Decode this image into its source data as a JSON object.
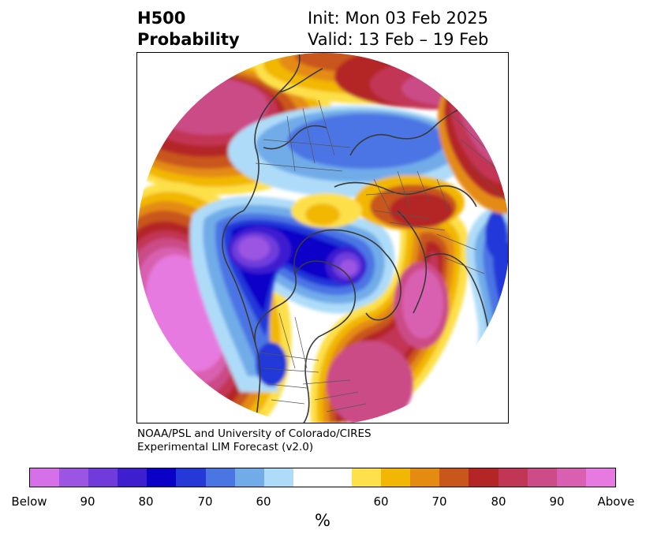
{
  "header": {
    "title_line1": "H500",
    "title_line2": "Probability",
    "init": "Init: Mon 03 Feb 2025",
    "valid": "Valid: 13 Feb – 19 Feb"
  },
  "credit": {
    "line1": "NOAA/PSL and University of Colorado/CIRES",
    "line2": "Experimental LIM Forecast (v2.0)"
  },
  "colorbar": {
    "unit": "%",
    "colors": [
      "#d670e8",
      "#9b55e2",
      "#6f3cdb",
      "#3d1fd0",
      "#0a00c8",
      "#2439d8",
      "#4c75e4",
      "#71ace9",
      "#aedcf8",
      "#ffffff",
      "#ffffff",
      "#fde04a",
      "#f2b705",
      "#e48b12",
      "#c9561a",
      "#b42626",
      "#c23655",
      "#cb4c86",
      "#d960b0",
      "#e77ae0"
    ],
    "ticks": [
      "Below",
      "90",
      "80",
      "70",
      "60",
      "60",
      "70",
      "80",
      "90",
      "Above"
    ]
  }
}
